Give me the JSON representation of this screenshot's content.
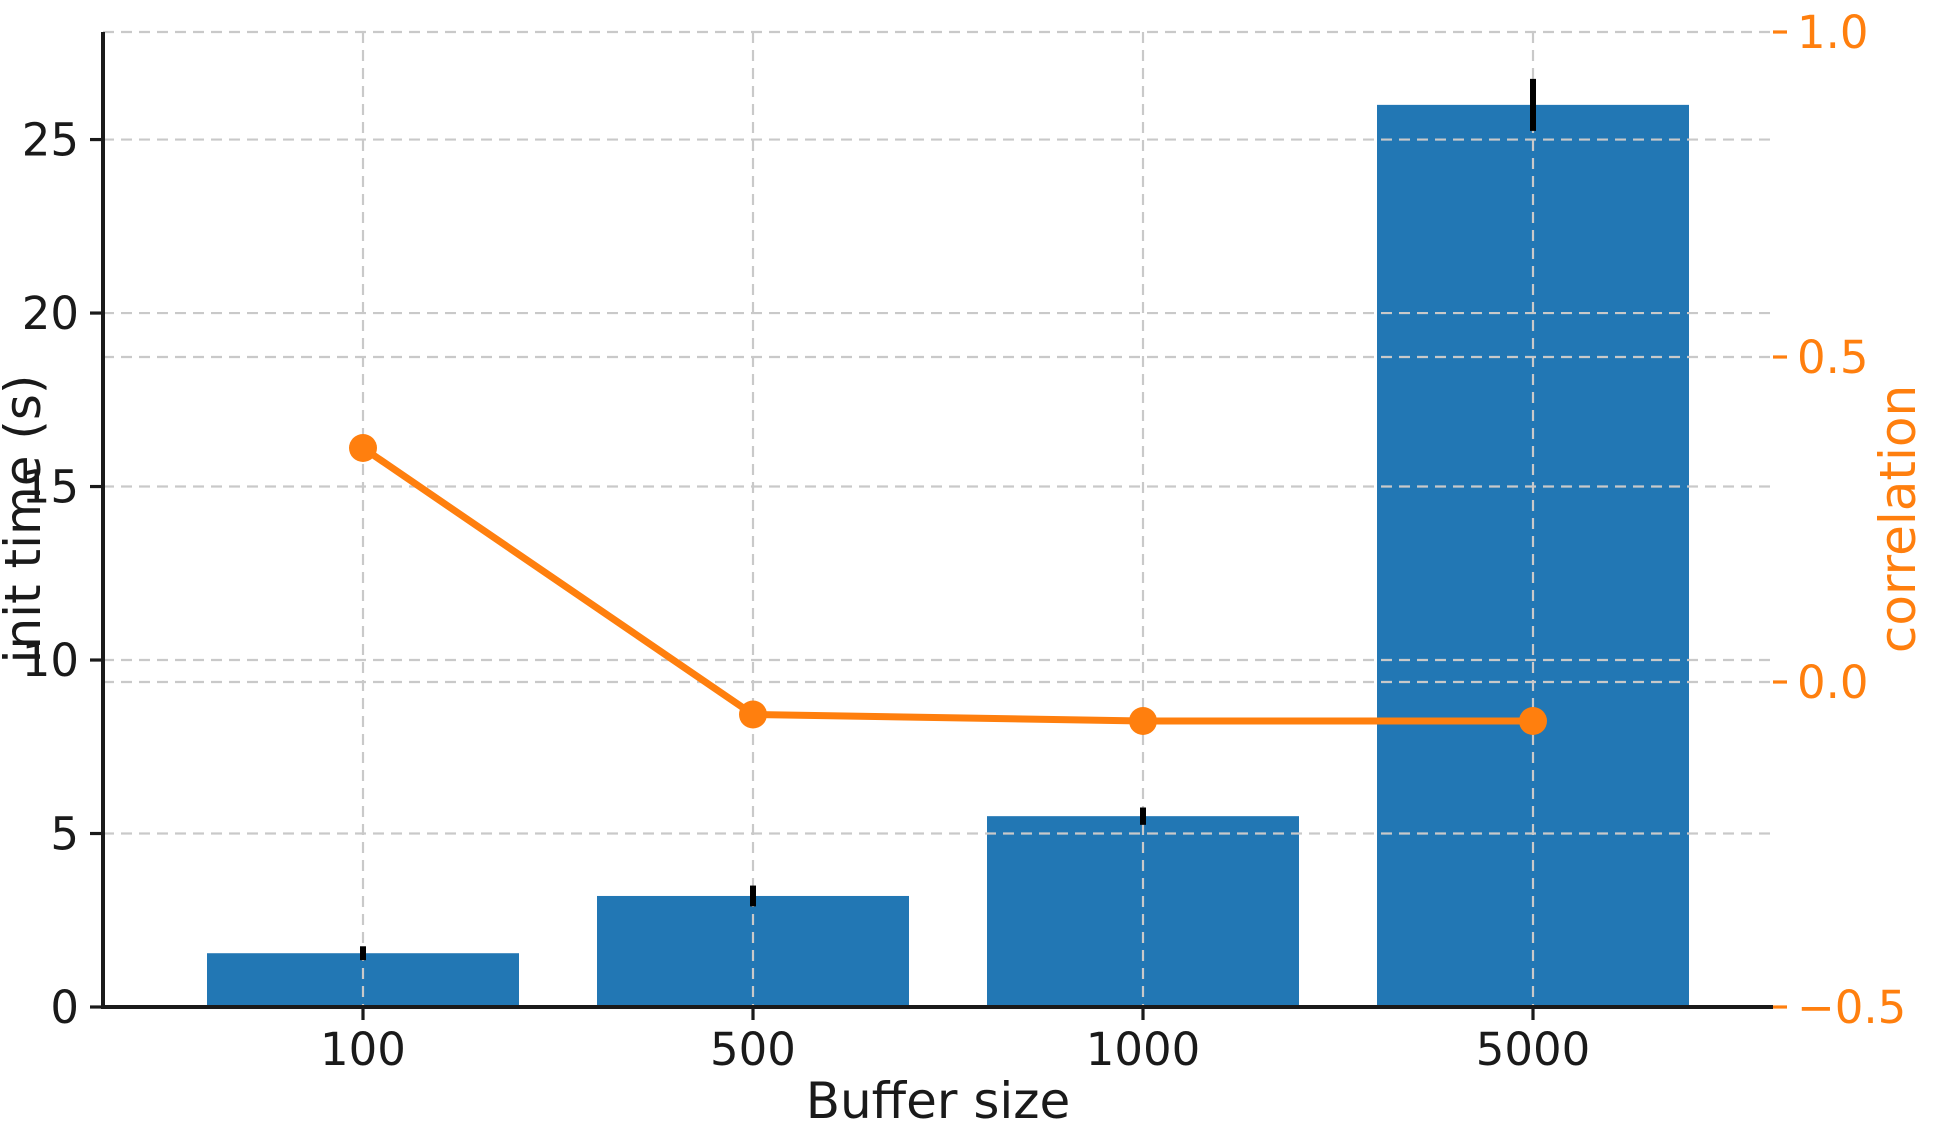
{
  "figure": {
    "background": "#ffffff"
  },
  "chart_data": {
    "type": "bar",
    "subtype": "dual-axis bar+line",
    "categories": [
      "100",
      "500",
      "1000",
      "5000"
    ],
    "series": [
      {
        "name": "init time",
        "type": "bar",
        "axis": "left",
        "color": "#2277b4",
        "values": [
          1.55,
          3.2,
          5.5,
          26.0
        ],
        "errors": [
          0.2,
          0.3,
          0.25,
          0.75
        ],
        "error_color": "#000000"
      },
      {
        "name": "correlation",
        "type": "line",
        "axis": "right",
        "color": "#ff7f0e",
        "values": [
          0.36,
          -0.05,
          -0.06,
          -0.06
        ],
        "marker": "circle"
      }
    ],
    "title": "",
    "xlabel": "Buffer size",
    "ylabel_left": "init time (s)",
    "ylabel_right": "correlation",
    "xtick_labels": [
      "100",
      "500",
      "1000",
      "5000"
    ],
    "yticks_left": {
      "values": [
        0,
        5,
        10,
        15,
        20,
        25
      ],
      "labels": [
        "0",
        "5",
        "10",
        "15",
        "20",
        "25"
      ]
    },
    "yticks_right": {
      "values": [
        1.0,
        0.5,
        0.0,
        -0.5
      ],
      "labels": [
        "1.0",
        "0.5",
        "0.0",
        "−0.5"
      ]
    },
    "ylim_left": [
      0,
      28.1
    ],
    "ylim_right": [
      -0.5,
      1.0
    ],
    "grid": "dashed, both axes, drawn above bars",
    "legend_position": "none"
  },
  "style": {
    "bar_color": "#2277b4",
    "line_color": "#ff7f0e",
    "right_axis_color": "#ff7f0e",
    "errorbar_color": "#000000",
    "grid_color": "#c9c9c9",
    "spine_color": "#1a1a1a",
    "text_color": "#1a1a1a",
    "background": "#ffffff"
  }
}
